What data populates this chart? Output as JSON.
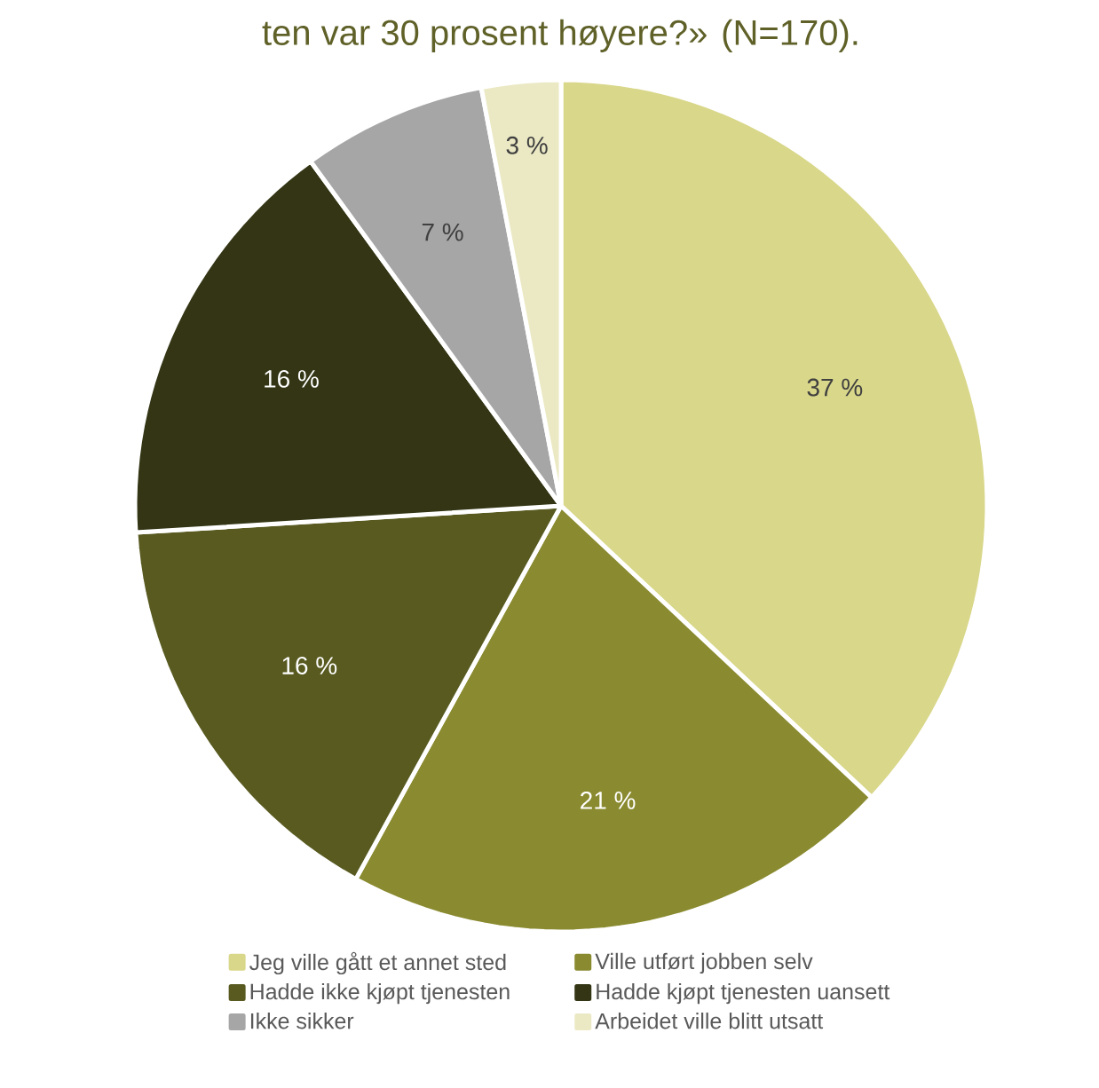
{
  "chart_data": {
    "type": "pie",
    "title": "ten var 30 prosent høyere?» (N=170).",
    "categories": [
      "Jeg ville gått et annet sted",
      "Ville utført jobben selv",
      "Hadde ikke kjøpt tjenesten",
      "Hadde kjøpt tjenesten uansett",
      "Ikke sikker",
      "Arbeidet ville blitt utsatt"
    ],
    "values": [
      37,
      21,
      16,
      16,
      7,
      3
    ],
    "colors": [
      "#d9d78a",
      "#8a8a30",
      "#585a20",
      "#333514",
      "#a6a6a6",
      "#ebe9c4"
    ],
    "value_labels": [
      "37 %",
      "21 %",
      "16 %",
      "16 %",
      "7 %",
      "3 %"
    ],
    "legend": "bottom"
  }
}
